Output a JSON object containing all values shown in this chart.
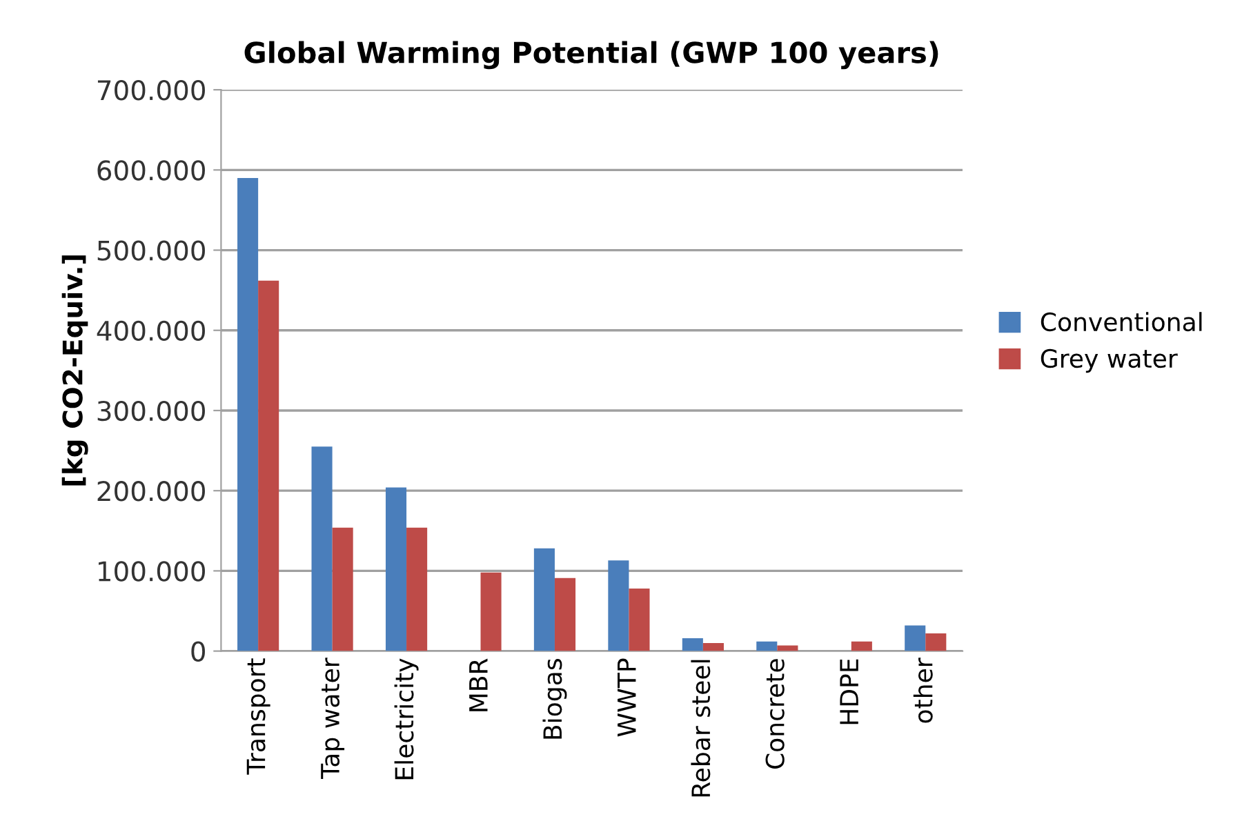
{
  "chart_data": {
    "type": "bar",
    "title": "Global Warming Potential (GWP 100 years)",
    "ylabel": "[kg CO2-Equiv.]",
    "categories": [
      "Transport",
      "Tap water",
      "Electricity",
      "MBR",
      "Biogas",
      "WWTP",
      "Rebar steel",
      "Concrete",
      "HDPE",
      "other"
    ],
    "series": [
      {
        "name": "Conventional",
        "color": "#4a7ebb",
        "values": [
          590000,
          255000,
          204000,
          0,
          128000,
          113000,
          16000,
          12000,
          0,
          32000
        ]
      },
      {
        "name": "Grey water",
        "color": "#be4b48",
        "values": [
          462000,
          154000,
          154000,
          98000,
          91000,
          78000,
          10000,
          7000,
          12000,
          22000
        ]
      }
    ],
    "ylim": [
      0,
      700000
    ],
    "yticks": [
      {
        "value": 0,
        "label": "0"
      },
      {
        "value": 100000,
        "label": "100.000"
      },
      {
        "value": 200000,
        "label": "200.000"
      },
      {
        "value": 300000,
        "label": "300.000"
      },
      {
        "value": 400000,
        "label": "400.000"
      },
      {
        "value": 500000,
        "label": "500.000"
      },
      {
        "value": 600000,
        "label": "600.000"
      },
      {
        "value": 700000,
        "label": "700.000"
      }
    ],
    "grid": "y",
    "legend": "right"
  }
}
